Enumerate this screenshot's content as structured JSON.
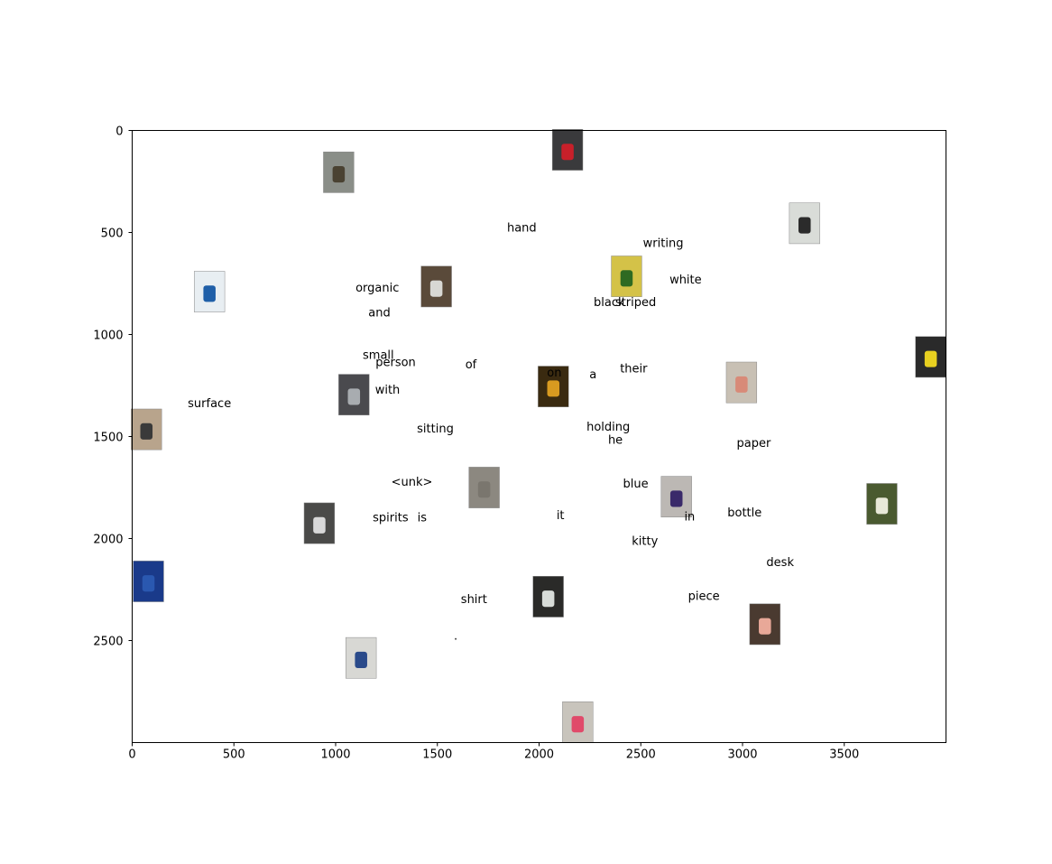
{
  "chart_data": {
    "type": "scatter",
    "title": "",
    "xlabel": "",
    "ylabel": "",
    "xlim": [
      0,
      4000
    ],
    "ylim": [
      3000,
      0
    ],
    "y_inverted": true,
    "grid": false,
    "xticks": [
      0,
      500,
      1000,
      1500,
      2000,
      2500,
      3000,
      3500
    ],
    "yticks": [
      0,
      500,
      1000,
      1500,
      2000,
      2500
    ],
    "words": [
      {
        "text": "hand",
        "x": 1915,
        "y": 480
      },
      {
        "text": "writing",
        "x": 2610,
        "y": 555
      },
      {
        "text": "white",
        "x": 2720,
        "y": 735
      },
      {
        "text": "organic",
        "x": 1205,
        "y": 775
      },
      {
        "text": "black",
        "x": 2345,
        "y": 845
      },
      {
        "text": "striped",
        "x": 2475,
        "y": 845
      },
      {
        "text": "and",
        "x": 1215,
        "y": 895
      },
      {
        "text": "small",
        "x": 1210,
        "y": 1105
      },
      {
        "text": "person",
        "x": 1295,
        "y": 1140
      },
      {
        "text": "of",
        "x": 1665,
        "y": 1150
      },
      {
        "text": "their",
        "x": 2465,
        "y": 1170
      },
      {
        "text": "on",
        "x": 2075,
        "y": 1190
      },
      {
        "text": "a",
        "x": 2265,
        "y": 1200
      },
      {
        "text": "with",
        "x": 1255,
        "y": 1275
      },
      {
        "text": "surface",
        "x": 380,
        "y": 1340
      },
      {
        "text": "holding",
        "x": 2340,
        "y": 1455
      },
      {
        "text": "sitting",
        "x": 1490,
        "y": 1465
      },
      {
        "text": "he",
        "x": 2375,
        "y": 1520
      },
      {
        "text": "paper",
        "x": 3055,
        "y": 1535
      },
      {
        "text": "<unk>",
        "x": 1375,
        "y": 1725
      },
      {
        "text": "blue",
        "x": 2475,
        "y": 1735
      },
      {
        "text": "bottle",
        "x": 3010,
        "y": 1875
      },
      {
        "text": "spirits",
        "x": 1270,
        "y": 1900
      },
      {
        "text": "is",
        "x": 1425,
        "y": 1900
      },
      {
        "text": "it",
        "x": 2105,
        "y": 1890
      },
      {
        "text": "in",
        "x": 2740,
        "y": 1895
      },
      {
        "text": "kitty",
        "x": 2520,
        "y": 2015
      },
      {
        "text": "desk",
        "x": 3185,
        "y": 2120
      },
      {
        "text": "shirt",
        "x": 1680,
        "y": 2300
      },
      {
        "text": "piece",
        "x": 2810,
        "y": 2285
      },
      {
        "text": ".",
        "x": 1590,
        "y": 2480
      }
    ],
    "images": [
      {
        "name": "cloudy-sky-object-thumbnail",
        "x": 1015,
        "y": 205,
        "color": "#8a8e88",
        "accent": "#4a4232"
      },
      {
        "name": "red-object-dark-thumbnail",
        "x": 2140,
        "y": 95,
        "color": "#3a3a3c",
        "accent": "#c8202a"
      },
      {
        "name": "dark-cup-thumbnail",
        "x": 3305,
        "y": 455,
        "color": "#d9dcd8",
        "accent": "#2b2b2b"
      },
      {
        "name": "chips-bag-thumbnail",
        "x": 380,
        "y": 790,
        "color": "#e8eef2",
        "accent": "#1f5fa8"
      },
      {
        "name": "white-bag-thumbnail",
        "x": 1495,
        "y": 765,
        "color": "#5a4a3a",
        "accent": "#d8d8d4"
      },
      {
        "name": "green-plant-thumbnail",
        "x": 2430,
        "y": 715,
        "color": "#d4c248",
        "accent": "#2e6a22"
      },
      {
        "name": "yellow-can-thumbnail",
        "x": 3925,
        "y": 1110,
        "color": "#2a2a2a",
        "accent": "#e8d020"
      },
      {
        "name": "dark-object-thumbnail",
        "x": 1090,
        "y": 1295,
        "color": "#4a4a4e",
        "accent": "#a8acb0"
      },
      {
        "name": "orange-light-thumbnail",
        "x": 2070,
        "y": 1255,
        "color": "#3a2a10",
        "accent": "#d89a20"
      },
      {
        "name": "tissue-box-thumbnail",
        "x": 2995,
        "y": 1235,
        "color": "#c8c0b4",
        "accent": "#d88a78"
      },
      {
        "name": "coffee-mug-thumbnail",
        "x": 70,
        "y": 1465,
        "color": "#b8a48c",
        "accent": "#3a3a3a"
      },
      {
        "name": "gray-surface-thumbnail",
        "x": 1730,
        "y": 1750,
        "color": "#8c8880",
        "accent": "#7a766e"
      },
      {
        "name": "purple-bottle-thumbnail",
        "x": 2675,
        "y": 1795,
        "color": "#bcb8b4",
        "accent": "#3a2a6a"
      },
      {
        "name": "green-bottle-thumbnail",
        "x": 3685,
        "y": 1830,
        "color": "#4a5a30",
        "accent": "#e8e8d8"
      },
      {
        "name": "dark-disc-thumbnail",
        "x": 920,
        "y": 1925,
        "color": "#4a4a48",
        "accent": "#d8d8d8"
      },
      {
        "name": "blue-fabric-thumbnail",
        "x": 80,
        "y": 2210,
        "color": "#1a3a8a",
        "accent": "#2a58b0"
      },
      {
        "name": "bright-screen-thumbnail",
        "x": 2045,
        "y": 2285,
        "color": "#2a2a28",
        "accent": "#d8dcd8"
      },
      {
        "name": "pink-item-thumbnail",
        "x": 3110,
        "y": 2420,
        "color": "#4a3a30",
        "accent": "#e8a898"
      },
      {
        "name": "white-bag-floor-thumbnail",
        "x": 1125,
        "y": 2585,
        "color": "#d8d8d4",
        "accent": "#2a4a8a"
      },
      {
        "name": "pink-box-thumbnail",
        "x": 2190,
        "y": 2900,
        "color": "#c8c4bc",
        "accent": "#e04a6a"
      }
    ]
  }
}
